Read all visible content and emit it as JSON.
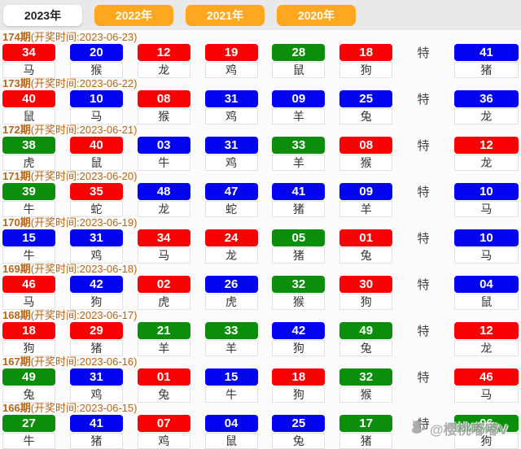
{
  "tabs": [
    {
      "label": "2023年",
      "active": true
    },
    {
      "label": "2022年",
      "active": false
    },
    {
      "label": "2021年",
      "active": false
    },
    {
      "label": "2020年",
      "active": false
    }
  ],
  "special_label": "特",
  "palette": {
    "red": "#f80102",
    "blue": "#0304ef",
    "green": "#0b8e0b",
    "tab_orange": "#ffa71f",
    "header_text": "#b5671c"
  },
  "draws": [
    {
      "period": "174期",
      "time_label": "(开奖时间:2023-06-23)",
      "balls": [
        {
          "num": "34",
          "color": "red",
          "zodiac": "马"
        },
        {
          "num": "20",
          "color": "blue",
          "zodiac": "猴"
        },
        {
          "num": "12",
          "color": "red",
          "zodiac": "龙"
        },
        {
          "num": "19",
          "color": "red",
          "zodiac": "鸡"
        },
        {
          "num": "28",
          "color": "green",
          "zodiac": "鼠"
        },
        {
          "num": "18",
          "color": "red",
          "zodiac": "狗"
        }
      ],
      "special": {
        "num": "41",
        "color": "blue",
        "zodiac": "猪"
      }
    },
    {
      "period": "173期",
      "time_label": "(开奖时间:2023-06-22)",
      "balls": [
        {
          "num": "40",
          "color": "red",
          "zodiac": "鼠"
        },
        {
          "num": "10",
          "color": "blue",
          "zodiac": "马"
        },
        {
          "num": "08",
          "color": "red",
          "zodiac": "猴"
        },
        {
          "num": "31",
          "color": "blue",
          "zodiac": "鸡"
        },
        {
          "num": "09",
          "color": "blue",
          "zodiac": "羊"
        },
        {
          "num": "25",
          "color": "blue",
          "zodiac": "兔"
        }
      ],
      "special": {
        "num": "36",
        "color": "blue",
        "zodiac": "龙"
      }
    },
    {
      "period": "172期",
      "time_label": "(开奖时间:2023-06-21)",
      "balls": [
        {
          "num": "38",
          "color": "green",
          "zodiac": "虎"
        },
        {
          "num": "40",
          "color": "red",
          "zodiac": "鼠"
        },
        {
          "num": "03",
          "color": "blue",
          "zodiac": "牛"
        },
        {
          "num": "31",
          "color": "blue",
          "zodiac": "鸡"
        },
        {
          "num": "33",
          "color": "green",
          "zodiac": "羊"
        },
        {
          "num": "08",
          "color": "red",
          "zodiac": "猴"
        }
      ],
      "special": {
        "num": "12",
        "color": "red",
        "zodiac": "龙"
      }
    },
    {
      "period": "171期",
      "time_label": "(开奖时间:2023-06-20)",
      "balls": [
        {
          "num": "39",
          "color": "green",
          "zodiac": "牛"
        },
        {
          "num": "35",
          "color": "red",
          "zodiac": "蛇"
        },
        {
          "num": "48",
          "color": "blue",
          "zodiac": "龙"
        },
        {
          "num": "47",
          "color": "blue",
          "zodiac": "蛇"
        },
        {
          "num": "41",
          "color": "blue",
          "zodiac": "猪"
        },
        {
          "num": "09",
          "color": "blue",
          "zodiac": "羊"
        }
      ],
      "special": {
        "num": "10",
        "color": "blue",
        "zodiac": "马"
      }
    },
    {
      "period": "170期",
      "time_label": "(开奖时间:2023-06-19)",
      "balls": [
        {
          "num": "15",
          "color": "blue",
          "zodiac": "牛"
        },
        {
          "num": "31",
          "color": "blue",
          "zodiac": "鸡"
        },
        {
          "num": "34",
          "color": "red",
          "zodiac": "马"
        },
        {
          "num": "24",
          "color": "red",
          "zodiac": "龙"
        },
        {
          "num": "05",
          "color": "green",
          "zodiac": "猪"
        },
        {
          "num": "01",
          "color": "red",
          "zodiac": "兔"
        }
      ],
      "special": {
        "num": "10",
        "color": "blue",
        "zodiac": "马"
      }
    },
    {
      "period": "169期",
      "time_label": "(开奖时间:2023-06-18)",
      "balls": [
        {
          "num": "46",
          "color": "red",
          "zodiac": "马"
        },
        {
          "num": "42",
          "color": "blue",
          "zodiac": "狗"
        },
        {
          "num": "02",
          "color": "red",
          "zodiac": "虎"
        },
        {
          "num": "26",
          "color": "blue",
          "zodiac": "虎"
        },
        {
          "num": "32",
          "color": "green",
          "zodiac": "猴"
        },
        {
          "num": "30",
          "color": "red",
          "zodiac": "狗"
        }
      ],
      "special": {
        "num": "04",
        "color": "blue",
        "zodiac": "鼠"
      }
    },
    {
      "period": "168期",
      "time_label": "(开奖时间:2023-06-17)",
      "balls": [
        {
          "num": "18",
          "color": "red",
          "zodiac": "狗"
        },
        {
          "num": "29",
          "color": "red",
          "zodiac": "猪"
        },
        {
          "num": "21",
          "color": "green",
          "zodiac": "羊"
        },
        {
          "num": "33",
          "color": "green",
          "zodiac": "羊"
        },
        {
          "num": "42",
          "color": "blue",
          "zodiac": "狗"
        },
        {
          "num": "49",
          "color": "green",
          "zodiac": "兔"
        }
      ],
      "special": {
        "num": "12",
        "color": "red",
        "zodiac": "龙"
      }
    },
    {
      "period": "167期",
      "time_label": "(开奖时间:2023-06-16)",
      "balls": [
        {
          "num": "49",
          "color": "green",
          "zodiac": "兔"
        },
        {
          "num": "31",
          "color": "blue",
          "zodiac": "鸡"
        },
        {
          "num": "01",
          "color": "red",
          "zodiac": "兔"
        },
        {
          "num": "15",
          "color": "blue",
          "zodiac": "牛"
        },
        {
          "num": "18",
          "color": "red",
          "zodiac": "狗"
        },
        {
          "num": "32",
          "color": "green",
          "zodiac": "猴"
        }
      ],
      "special": {
        "num": "46",
        "color": "red",
        "zodiac": "马"
      }
    },
    {
      "period": "166期",
      "time_label": "(开奖时间:2023-06-15)",
      "balls": [
        {
          "num": "27",
          "color": "green",
          "zodiac": "牛"
        },
        {
          "num": "41",
          "color": "blue",
          "zodiac": "猪"
        },
        {
          "num": "07",
          "color": "red",
          "zodiac": "鸡"
        },
        {
          "num": "04",
          "color": "blue",
          "zodiac": "鼠"
        },
        {
          "num": "25",
          "color": "blue",
          "zodiac": "兔"
        },
        {
          "num": "17",
          "color": "green",
          "zodiac": "猪"
        }
      ],
      "special": {
        "num": "06",
        "color": "green",
        "zodiac": "狗"
      }
    }
  ],
  "watermark": {
    "icon": "cat-icon",
    "text": "@樱桃嘟嘟V"
  }
}
